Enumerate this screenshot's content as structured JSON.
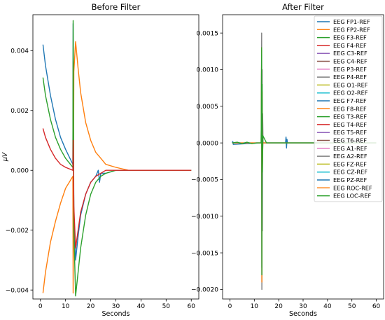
{
  "chart_data": [
    {
      "type": "line",
      "title": "Before Filter",
      "xlabel": "Seconds",
      "ylabel": "μV",
      "xlim": [
        -3,
        63
      ],
      "ylim": [
        -0.0043,
        0.0052
      ],
      "xticks": [
        0,
        10,
        20,
        30,
        40,
        50,
        60
      ],
      "xtick_labels": [
        "0",
        "10",
        "20",
        "30",
        "40",
        "50",
        "60"
      ],
      "yticks": [
        -0.004,
        -0.002,
        0.0,
        0.002,
        0.004
      ],
      "ytick_labels": [
        "−0.004",
        "−0.002",
        "0.000",
        "0.002",
        "0.004"
      ],
      "grid": false,
      "series": [
        {
          "color": "#1f77b4",
          "x": [
            1,
            2,
            4,
            6,
            8,
            10,
            12.9,
            13.0,
            13.3,
            14,
            15,
            16,
            18,
            20,
            22,
            23,
            23.5,
            24,
            26,
            30,
            35,
            40,
            60
          ],
          "y": [
            0.0042,
            0.0035,
            0.0025,
            0.0017,
            0.0011,
            0.0007,
            0.0002,
            0.0049,
            -0.0015,
            -0.003,
            -0.0022,
            -0.0015,
            -0.0008,
            -0.0004,
            -0.0002,
            0.0,
            -0.0004,
            -0.0001,
            -0.0001,
            0.0,
            0.0,
            0.0,
            0.0
          ]
        },
        {
          "color": "#ff7f0e",
          "x": [
            1,
            2,
            4,
            6,
            8,
            10,
            12.9,
            13.0,
            13.3,
            14,
            15,
            16,
            18,
            20,
            22,
            24,
            26,
            30,
            35,
            40,
            60
          ],
          "y": [
            -0.0041,
            -0.0034,
            -0.0024,
            -0.0017,
            -0.0011,
            -0.0006,
            -0.0002,
            -0.0041,
            0.0033,
            0.0043,
            0.0034,
            0.0026,
            0.0016,
            0.001,
            0.0006,
            0.0004,
            0.0002,
            0.0001,
            0.0,
            0.0,
            0.0
          ]
        },
        {
          "color": "#2ca02c",
          "x": [
            1,
            2,
            4,
            6,
            8,
            10,
            12.9,
            13.0,
            13.3,
            14,
            15,
            16,
            18,
            20,
            22,
            24,
            26,
            30,
            35,
            40,
            60
          ],
          "y": [
            0.0031,
            0.0025,
            0.0017,
            0.0011,
            0.0007,
            0.0004,
            0.0001,
            0.005,
            -0.002,
            -0.0042,
            -0.0034,
            -0.0026,
            -0.0015,
            -0.0008,
            -0.0004,
            -0.0002,
            -0.0001,
            0.0,
            0.0,
            0.0,
            0.0
          ]
        },
        {
          "color": "#d62728",
          "x": [
            1,
            2,
            4,
            6,
            8,
            10,
            12.9,
            13.0,
            13.3,
            14,
            15,
            16,
            18,
            20,
            22,
            24,
            26,
            30,
            35,
            40,
            60
          ],
          "y": [
            0.0014,
            0.0011,
            0.0007,
            0.0004,
            0.0002,
            0.0001,
            0.0,
            0.001,
            -0.0012,
            -0.0026,
            -0.002,
            -0.0014,
            -0.0008,
            -0.0004,
            -0.0002,
            -0.0001,
            0.0,
            0.0,
            0.0,
            0.0,
            0.0
          ]
        }
      ]
    },
    {
      "type": "line",
      "title": "After Filter",
      "xlabel": "Seconds",
      "ylabel": "",
      "xlim": [
        -3,
        63
      ],
      "ylim": [
        -0.00213,
        0.00175
      ],
      "xticks": [
        0,
        10,
        20,
        30,
        40,
        50,
        60
      ],
      "xtick_labels": [
        "0",
        "10",
        "20",
        "30",
        "40",
        "50",
        "60"
      ],
      "yticks": [
        -0.002,
        -0.0015,
        -0.001,
        -0.0005,
        0.0,
        0.0005,
        0.001,
        0.0015
      ],
      "ytick_labels": [
        "−0.0020",
        "−0.0015",
        "−0.0010",
        "−0.0005",
        "0.0000",
        "0.0005",
        "0.0010",
        "0.0015"
      ],
      "grid": false,
      "legend": {
        "placement": "top-right",
        "entries": [
          {
            "label": "EEG FP1-REF",
            "color": "#1f77b4"
          },
          {
            "label": "EEG FP2-REF",
            "color": "#ff7f0e"
          },
          {
            "label": "EEG F3-REF",
            "color": "#2ca02c"
          },
          {
            "label": "EEG F4-REF",
            "color": "#d62728"
          },
          {
            "label": "EEG C3-REF",
            "color": "#9467bd"
          },
          {
            "label": "EEG C4-REF",
            "color": "#8c564b"
          },
          {
            "label": "EEG P3-REF",
            "color": "#e377c2"
          },
          {
            "label": "EEG P4-REF",
            "color": "#7f7f7f"
          },
          {
            "label": "EEG O1-REF",
            "color": "#bcbd22"
          },
          {
            "label": "EEG O2-REF",
            "color": "#17becf"
          },
          {
            "label": "EEG F7-REF",
            "color": "#1f77b4"
          },
          {
            "label": "EEG F8-REF",
            "color": "#ff7f0e"
          },
          {
            "label": "EEG T3-REF",
            "color": "#2ca02c"
          },
          {
            "label": "EEG T4-REF",
            "color": "#d62728"
          },
          {
            "label": "EEG T5-REF",
            "color": "#9467bd"
          },
          {
            "label": "EEG T6-REF",
            "color": "#8c564b"
          },
          {
            "label": "EEG A1-REF",
            "color": "#e377c2"
          },
          {
            "label": "EEG A2-REF",
            "color": "#7f7f7f"
          },
          {
            "label": "EEG FZ-REF",
            "color": "#bcbd22"
          },
          {
            "label": "EEG CZ-REF",
            "color": "#17becf"
          },
          {
            "label": "EEG PZ-REF",
            "color": "#1f77b4"
          },
          {
            "label": "EEG ROC-REF",
            "color": "#ff7f0e"
          },
          {
            "label": "EEG LOC-REF",
            "color": "#2ca02c"
          }
        ]
      },
      "series": [
        {
          "color": "#7f7f7f",
          "x": [
            1,
            12.8,
            13.0,
            13.1,
            13.2,
            13.3,
            13.4,
            13.6,
            60
          ],
          "y": [
            0.0,
            0.0,
            0.0015,
            -0.002,
            0.001,
            -0.0012,
            0.0004,
            0.0,
            0.0
          ]
        },
        {
          "color": "#1f77b4",
          "x": [
            1,
            1.2,
            1.4,
            12.8,
            13.0,
            13.1,
            13.2,
            13.3,
            13.5,
            22.8,
            23.0,
            23.2,
            23.4,
            23.6,
            60
          ],
          "y": [
            0.0,
            2e-05,
            -2e-05,
            0.0,
            0.0012,
            -0.0017,
            0.0006,
            -0.0003,
            0.0,
            0.0,
            8e-05,
            -7e-05,
            5e-05,
            0.0,
            0.0
          ]
        },
        {
          "color": "#ff7f0e",
          "x": [
            1,
            12.8,
            13.0,
            13.1,
            13.2,
            13.3,
            13.5,
            60
          ],
          "y": [
            0.0,
            0.0,
            0.0013,
            -0.0019,
            0.0007,
            -0.0004,
            0.0,
            0.0
          ]
        },
        {
          "color": "#2ca02c",
          "x": [
            1,
            3,
            5,
            7,
            9,
            11,
            12.8,
            13.0,
            13.1,
            13.2,
            13.3,
            13.5,
            15,
            60
          ],
          "y": [
            0.0,
            1e-05,
            -1e-05,
            1e-05,
            -1e-05,
            0.0,
            0.0,
            0.0013,
            -0.0018,
            0.0008,
            -0.0004,
            0.0001,
            0.0,
            0.0
          ]
        }
      ]
    }
  ]
}
